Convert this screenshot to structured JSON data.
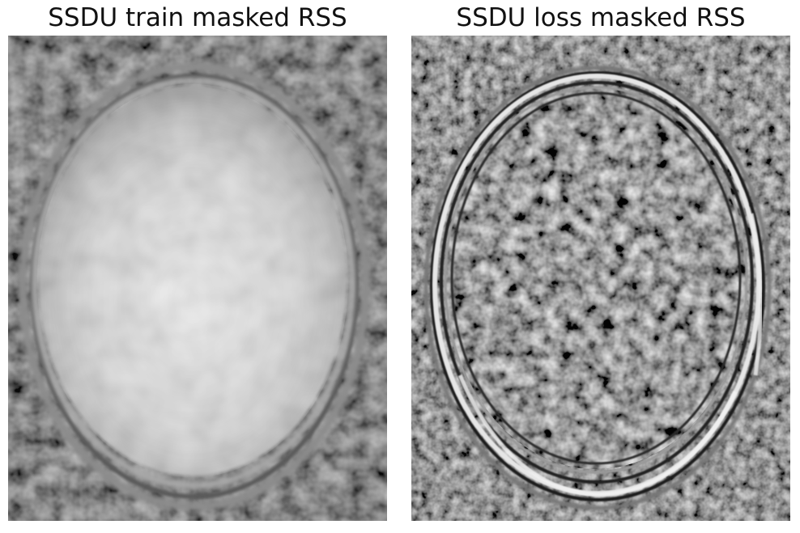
{
  "panels": [
    {
      "title": "SSDU train masked RSS",
      "content": "brain-mri-reconstruction-smooth"
    },
    {
      "title": "SSDU loss masked RSS",
      "content": "brain-mri-reconstruction-edges"
    }
  ],
  "colors": {
    "background": "#ffffff",
    "text": "#111111",
    "image_dark": "#3a3a3a",
    "image_light": "#e8e8e8"
  }
}
